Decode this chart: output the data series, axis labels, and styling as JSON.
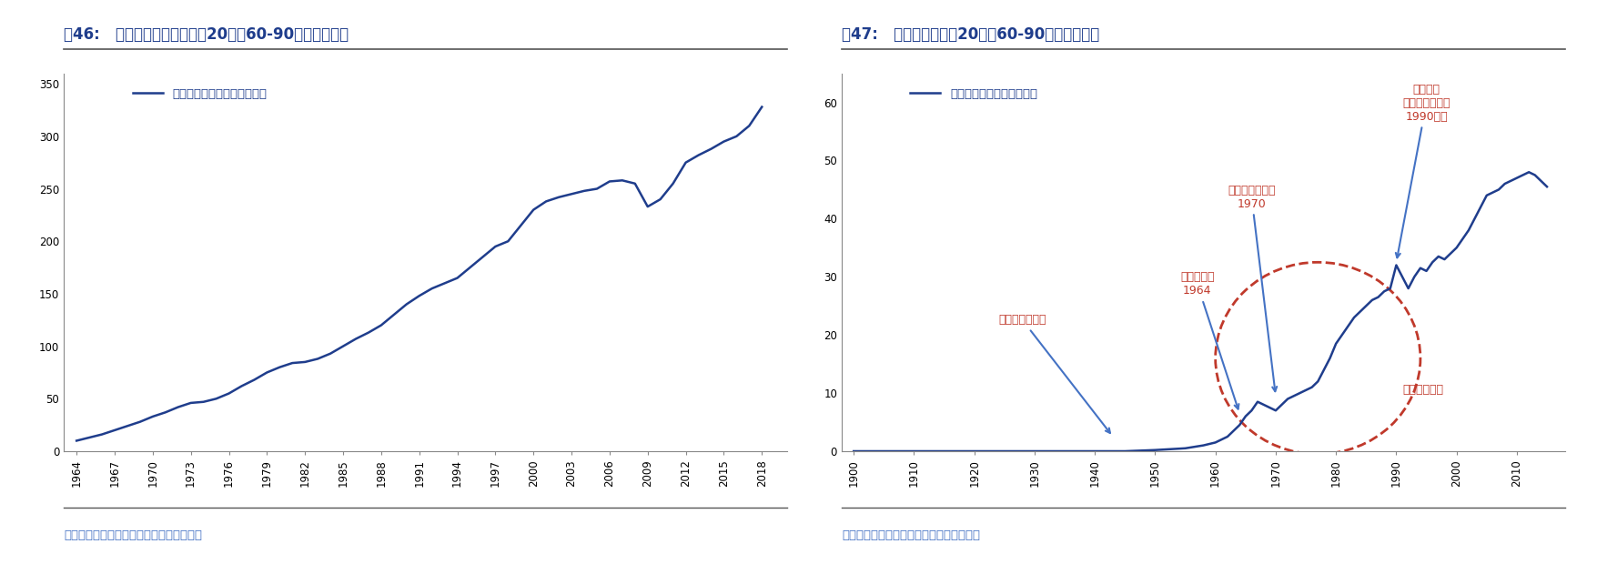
{
  "fig46_title": "图46:   日本奶酪国内消费量在20世纪60-90年代大幅增长",
  "fig47_title": "图47:   日本奶酪生产在20世纪60-90年代大幅增长",
  "source_text": "资料来源：美国农业部、安信证券研究中心",
  "line_color": "#1f3d8c",
  "title_color": "#1f3d8c",
  "source_color": "#4472c4",
  "annotation_color_blue": "#4472c4",
  "annotation_color_red": "#c0392b",
  "bg_color": "#ffffff",
  "fig46_legend": "日本奶酪国内消费量（千吨）",
  "fig47_legend": "日本奶酪总生产量（千吨）",
  "fig46_yticks": [
    0,
    50,
    100,
    150,
    200,
    250,
    300,
    350
  ],
  "fig46_ylim": [
    0,
    360
  ],
  "fig46_xticks": [
    1964,
    1967,
    1970,
    1973,
    1976,
    1979,
    1982,
    1985,
    1988,
    1991,
    1994,
    1997,
    2000,
    2003,
    2006,
    2009,
    2012,
    2015,
    2018
  ],
  "fig47_yticks": [
    0,
    10,
    20,
    30,
    40,
    50,
    60
  ],
  "fig47_ylim": [
    0,
    65
  ],
  "fig47_xticks": [
    1900,
    1910,
    1920,
    1930,
    1940,
    1950,
    1960,
    1970,
    1980,
    1990,
    2000,
    2010
  ],
  "fig46_data_x": [
    1964,
    1965,
    1966,
    1967,
    1968,
    1969,
    1970,
    1971,
    1972,
    1973,
    1974,
    1975,
    1976,
    1977,
    1978,
    1979,
    1980,
    1981,
    1982,
    1983,
    1984,
    1985,
    1986,
    1987,
    1988,
    1989,
    1990,
    1991,
    1992,
    1993,
    1994,
    1995,
    1996,
    1997,
    1998,
    1999,
    2000,
    2001,
    2002,
    2003,
    2004,
    2005,
    2006,
    2007,
    2008,
    2009,
    2010,
    2011,
    2012,
    2013,
    2014,
    2015,
    2016,
    2017,
    2018
  ],
  "fig46_data_y": [
    10,
    13,
    16,
    20,
    24,
    28,
    33,
    37,
    42,
    46,
    47,
    50,
    55,
    62,
    68,
    75,
    80,
    84,
    85,
    88,
    93,
    100,
    107,
    113,
    120,
    130,
    140,
    148,
    155,
    160,
    165,
    175,
    185,
    195,
    200,
    215,
    230,
    238,
    242,
    245,
    248,
    250,
    257,
    258,
    255,
    233,
    240,
    255,
    275,
    282,
    288,
    295,
    300,
    310,
    328
  ],
  "fig47_data_x": [
    1900,
    1905,
    1910,
    1915,
    1920,
    1925,
    1930,
    1935,
    1940,
    1943,
    1945,
    1950,
    1955,
    1958,
    1960,
    1962,
    1963,
    1964,
    1965,
    1966,
    1967,
    1968,
    1969,
    1970,
    1971,
    1972,
    1973,
    1974,
    1975,
    1976,
    1977,
    1978,
    1979,
    1980,
    1981,
    1982,
    1983,
    1984,
    1985,
    1986,
    1987,
    1988,
    1989,
    1990,
    1991,
    1992,
    1993,
    1994,
    1995,
    1996,
    1997,
    1998,
    1999,
    2000,
    2001,
    2002,
    2003,
    2004,
    2005,
    2006,
    2007,
    2008,
    2009,
    2010,
    2011,
    2012,
    2013,
    2014,
    2015
  ],
  "fig47_data_y": [
    0,
    0,
    0,
    0,
    0,
    0,
    0,
    0,
    0,
    0,
    0,
    0.2,
    0.5,
    1.0,
    1.5,
    2.5,
    3.5,
    4.5,
    6.0,
    7.0,
    8.5,
    8.0,
    7.5,
    7.0,
    8.0,
    9.0,
    9.5,
    10.0,
    10.5,
    11.0,
    12.0,
    14.0,
    16.0,
    18.5,
    20.0,
    21.5,
    23.0,
    24.0,
    25.0,
    26.0,
    26.5,
    27.5,
    28.0,
    32.0,
    30.0,
    28.0,
    30.0,
    31.5,
    31.0,
    32.5,
    33.5,
    33.0,
    34.0,
    35.0,
    36.5,
    38.0,
    40.0,
    42.0,
    44.0,
    44.5,
    45.0,
    46.0,
    46.5,
    47.0,
    47.5,
    48.0,
    47.5,
    46.5,
    45.5
  ]
}
